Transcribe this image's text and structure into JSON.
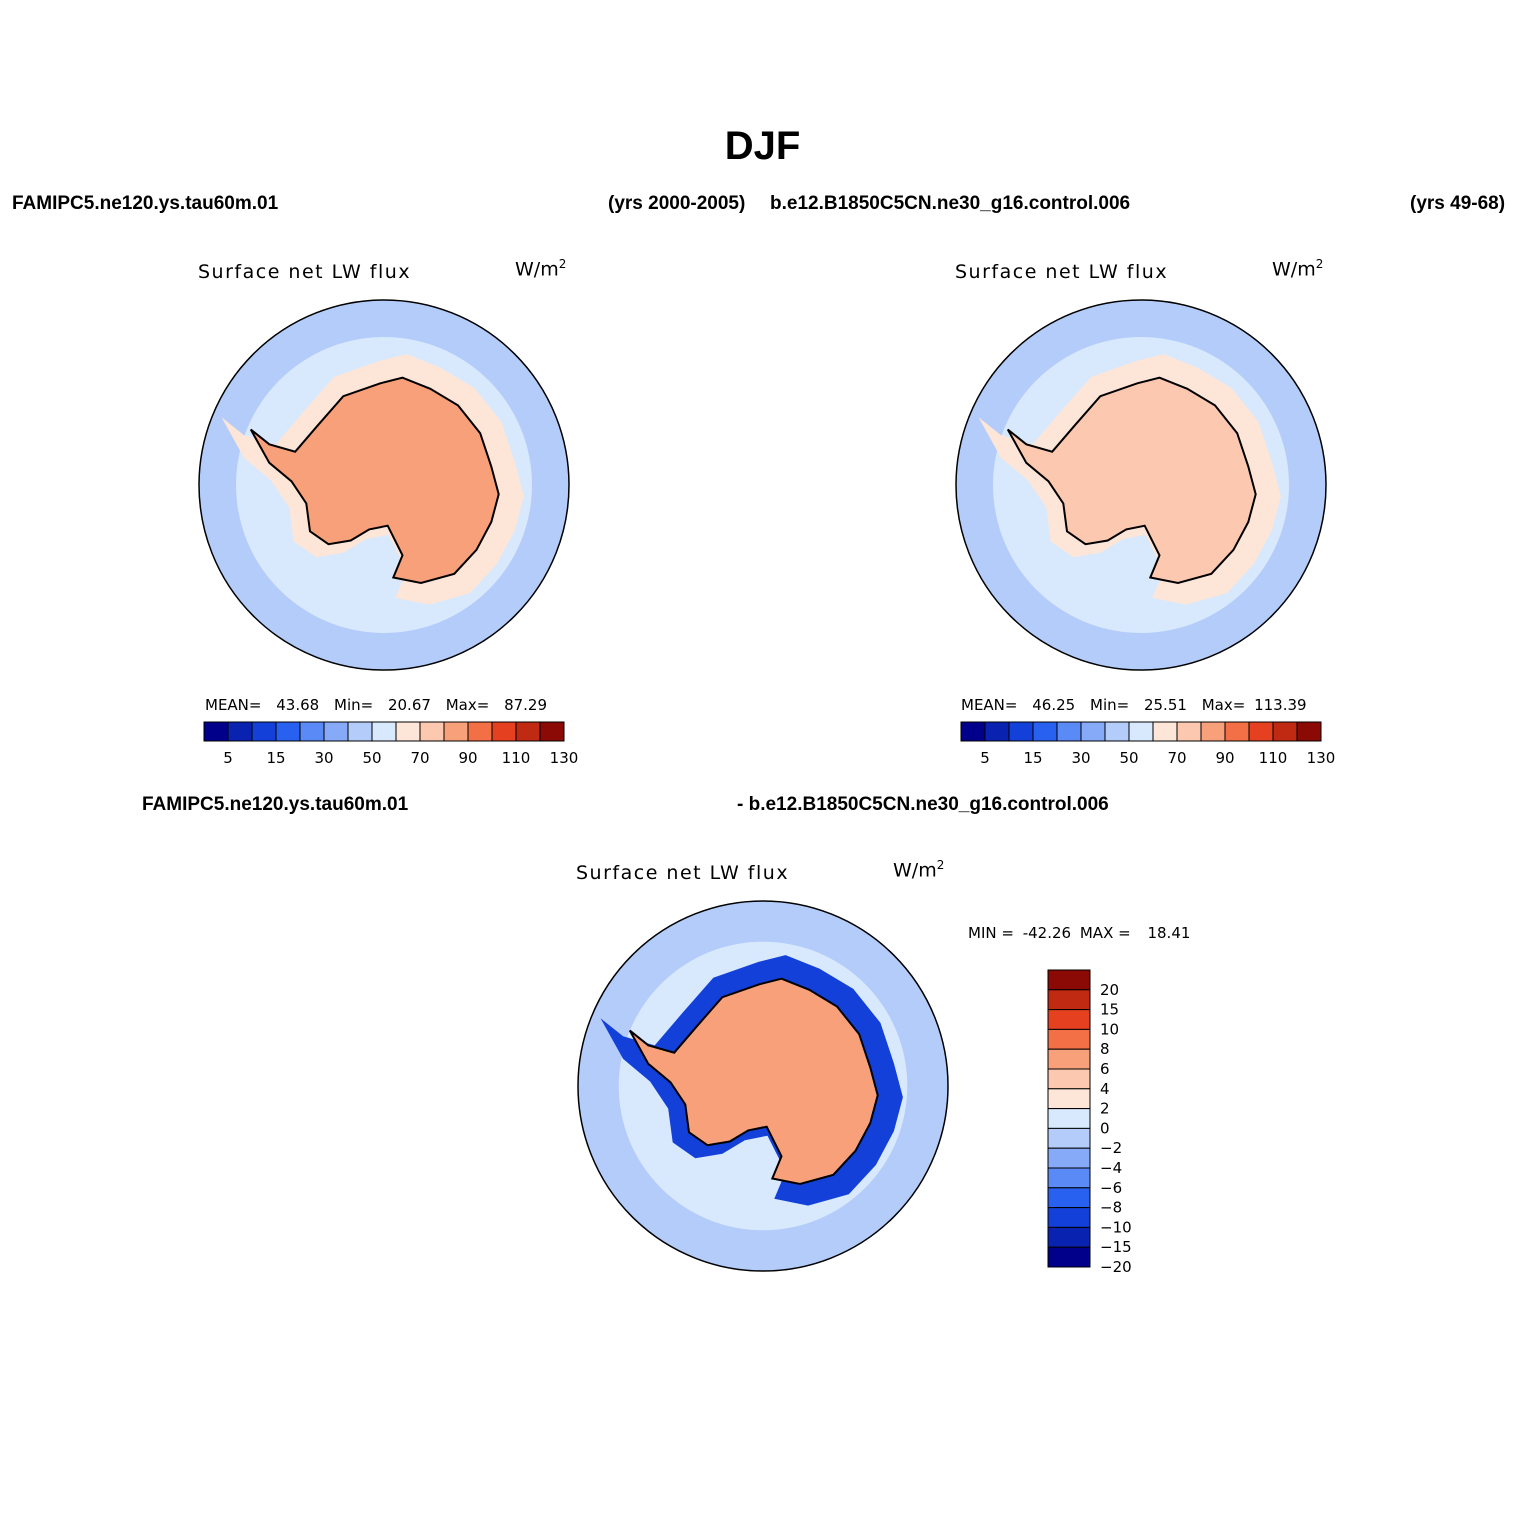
{
  "title": "DJF",
  "headers": {
    "left_case": "FAMIPC5.ne120.ys.tau60m.01",
    "left_years": "(yrs 2000-2005)",
    "right_case": "b.e12.B1850C5CN.ne30_g16.control.006",
    "right_years": "(yrs 49-68)",
    "diff_left": "FAMIPC5.ne120.ys.tau60m.01",
    "diff_right": "- b.e12.B1850C5CN.ne30_g16.control.006"
  },
  "colors": {
    "abs_scale": [
      "#00008b",
      "#0a22b0",
      "#1240d8",
      "#2860f0",
      "#5a8af5",
      "#86aaf7",
      "#b4ccfa",
      "#d8e8fd",
      "#fde6d8",
      "#fcc9b0",
      "#f8a07a",
      "#f36f46",
      "#e5401f",
      "#c02a12",
      "#8b0a05"
    ],
    "diff_scale": [
      "#00008b",
      "#0a22b0",
      "#1240d8",
      "#2860f0",
      "#5a8af5",
      "#86aaf7",
      "#b4ccfa",
      "#d8e8fd",
      "#fde6d8",
      "#fcc9b0",
      "#f8a07a",
      "#f36f46",
      "#e5401f",
      "#c02a12",
      "#8b0a05"
    ]
  },
  "chart_data": [
    {
      "type": "polar-contour-map",
      "id": "panel-a",
      "title": "Surface net LW flux",
      "units": "W/m",
      "units_sup": "2",
      "stats": {
        "mean_label": "MEAN=",
        "mean": "43.68",
        "min_label": "Min=",
        "min": "20.67",
        "max_label": "Max=",
        "max": "87.29"
      },
      "levels": [
        5,
        10,
        15,
        20,
        25,
        30,
        40,
        50,
        60,
        70,
        80,
        90,
        100,
        110,
        120,
        130
      ],
      "colorbar_labels": [
        "5",
        "15",
        "30",
        "50",
        "70",
        "90",
        "110",
        "130"
      ],
      "field": {
        "ocean_far": 30,
        "ocean_mid": 40,
        "coast": 50,
        "continent": 70
      }
    },
    {
      "type": "polar-contour-map",
      "id": "panel-b",
      "title": "Surface net LW flux",
      "units": "W/m",
      "units_sup": "2",
      "stats": {
        "mean_label": "MEAN=",
        "mean": "46.25",
        "min_label": "Min=",
        "min": "25.51",
        "max_label": "Max=",
        "max": "113.39"
      },
      "levels": [
        5,
        10,
        15,
        20,
        25,
        30,
        40,
        50,
        60,
        70,
        80,
        90,
        100,
        110,
        120,
        130
      ],
      "colorbar_labels": [
        "5",
        "15",
        "30",
        "50",
        "70",
        "90",
        "110",
        "130"
      ],
      "field": {
        "ocean_far": 30,
        "ocean_mid": 40,
        "coast": 50,
        "continent": 65
      }
    },
    {
      "type": "polar-contour-map",
      "id": "panel-diff",
      "title": "Surface net LW flux",
      "units": "W/m",
      "units_sup": "2",
      "stats": {
        "min_label": "MIN =",
        "min": "-42.26",
        "max_label": "MAX =",
        "max": "18.41"
      },
      "levels": [
        -20,
        -15,
        -10,
        -8,
        -6,
        -4,
        -2,
        0,
        2,
        4,
        6,
        8,
        10,
        15,
        20
      ],
      "colorbar_labels": [
        "20",
        "15",
        "10",
        "8",
        "6",
        "4",
        "2",
        "0",
        "−2",
        "−4",
        "−6",
        "−8",
        "−10",
        "−15",
        "−20"
      ],
      "field": {
        "ocean_far": -3,
        "ocean_mid": -1,
        "coast": -15,
        "continent": 4
      }
    }
  ]
}
